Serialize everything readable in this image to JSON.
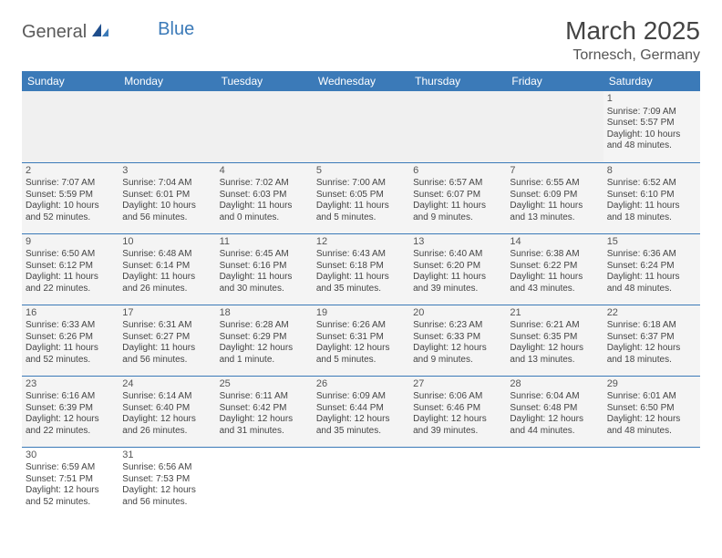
{
  "logo": {
    "part1": "General",
    "part2": "Blue"
  },
  "title": "March 2025",
  "location": "Tornesch, Germany",
  "day_headers": [
    "Sunday",
    "Monday",
    "Tuesday",
    "Wednesday",
    "Thursday",
    "Friday",
    "Saturday"
  ],
  "colors": {
    "header_bg": "#3b7ab8",
    "header_text": "#ffffff",
    "cell_bg": "#f4f4f4",
    "empty_bg": "#f0f0f0",
    "border": "#3b7ab8"
  },
  "weeks": [
    [
      null,
      null,
      null,
      null,
      null,
      null,
      {
        "n": "1",
        "sr": "Sunrise: 7:09 AM",
        "ss": "Sunset: 5:57 PM",
        "d1": "Daylight: 10 hours",
        "d2": "and 48 minutes."
      }
    ],
    [
      {
        "n": "2",
        "sr": "Sunrise: 7:07 AM",
        "ss": "Sunset: 5:59 PM",
        "d1": "Daylight: 10 hours",
        "d2": "and 52 minutes."
      },
      {
        "n": "3",
        "sr": "Sunrise: 7:04 AM",
        "ss": "Sunset: 6:01 PM",
        "d1": "Daylight: 10 hours",
        "d2": "and 56 minutes."
      },
      {
        "n": "4",
        "sr": "Sunrise: 7:02 AM",
        "ss": "Sunset: 6:03 PM",
        "d1": "Daylight: 11 hours",
        "d2": "and 0 minutes."
      },
      {
        "n": "5",
        "sr": "Sunrise: 7:00 AM",
        "ss": "Sunset: 6:05 PM",
        "d1": "Daylight: 11 hours",
        "d2": "and 5 minutes."
      },
      {
        "n": "6",
        "sr": "Sunrise: 6:57 AM",
        "ss": "Sunset: 6:07 PM",
        "d1": "Daylight: 11 hours",
        "d2": "and 9 minutes."
      },
      {
        "n": "7",
        "sr": "Sunrise: 6:55 AM",
        "ss": "Sunset: 6:09 PM",
        "d1": "Daylight: 11 hours",
        "d2": "and 13 minutes."
      },
      {
        "n": "8",
        "sr": "Sunrise: 6:52 AM",
        "ss": "Sunset: 6:10 PM",
        "d1": "Daylight: 11 hours",
        "d2": "and 18 minutes."
      }
    ],
    [
      {
        "n": "9",
        "sr": "Sunrise: 6:50 AM",
        "ss": "Sunset: 6:12 PM",
        "d1": "Daylight: 11 hours",
        "d2": "and 22 minutes."
      },
      {
        "n": "10",
        "sr": "Sunrise: 6:48 AM",
        "ss": "Sunset: 6:14 PM",
        "d1": "Daylight: 11 hours",
        "d2": "and 26 minutes."
      },
      {
        "n": "11",
        "sr": "Sunrise: 6:45 AM",
        "ss": "Sunset: 6:16 PM",
        "d1": "Daylight: 11 hours",
        "d2": "and 30 minutes."
      },
      {
        "n": "12",
        "sr": "Sunrise: 6:43 AM",
        "ss": "Sunset: 6:18 PM",
        "d1": "Daylight: 11 hours",
        "d2": "and 35 minutes."
      },
      {
        "n": "13",
        "sr": "Sunrise: 6:40 AM",
        "ss": "Sunset: 6:20 PM",
        "d1": "Daylight: 11 hours",
        "d2": "and 39 minutes."
      },
      {
        "n": "14",
        "sr": "Sunrise: 6:38 AM",
        "ss": "Sunset: 6:22 PM",
        "d1": "Daylight: 11 hours",
        "d2": "and 43 minutes."
      },
      {
        "n": "15",
        "sr": "Sunrise: 6:36 AM",
        "ss": "Sunset: 6:24 PM",
        "d1": "Daylight: 11 hours",
        "d2": "and 48 minutes."
      }
    ],
    [
      {
        "n": "16",
        "sr": "Sunrise: 6:33 AM",
        "ss": "Sunset: 6:26 PM",
        "d1": "Daylight: 11 hours",
        "d2": "and 52 minutes."
      },
      {
        "n": "17",
        "sr": "Sunrise: 6:31 AM",
        "ss": "Sunset: 6:27 PM",
        "d1": "Daylight: 11 hours",
        "d2": "and 56 minutes."
      },
      {
        "n": "18",
        "sr": "Sunrise: 6:28 AM",
        "ss": "Sunset: 6:29 PM",
        "d1": "Daylight: 12 hours",
        "d2": "and 1 minute."
      },
      {
        "n": "19",
        "sr": "Sunrise: 6:26 AM",
        "ss": "Sunset: 6:31 PM",
        "d1": "Daylight: 12 hours",
        "d2": "and 5 minutes."
      },
      {
        "n": "20",
        "sr": "Sunrise: 6:23 AM",
        "ss": "Sunset: 6:33 PM",
        "d1": "Daylight: 12 hours",
        "d2": "and 9 minutes."
      },
      {
        "n": "21",
        "sr": "Sunrise: 6:21 AM",
        "ss": "Sunset: 6:35 PM",
        "d1": "Daylight: 12 hours",
        "d2": "and 13 minutes."
      },
      {
        "n": "22",
        "sr": "Sunrise: 6:18 AM",
        "ss": "Sunset: 6:37 PM",
        "d1": "Daylight: 12 hours",
        "d2": "and 18 minutes."
      }
    ],
    [
      {
        "n": "23",
        "sr": "Sunrise: 6:16 AM",
        "ss": "Sunset: 6:39 PM",
        "d1": "Daylight: 12 hours",
        "d2": "and 22 minutes."
      },
      {
        "n": "24",
        "sr": "Sunrise: 6:14 AM",
        "ss": "Sunset: 6:40 PM",
        "d1": "Daylight: 12 hours",
        "d2": "and 26 minutes."
      },
      {
        "n": "25",
        "sr": "Sunrise: 6:11 AM",
        "ss": "Sunset: 6:42 PM",
        "d1": "Daylight: 12 hours",
        "d2": "and 31 minutes."
      },
      {
        "n": "26",
        "sr": "Sunrise: 6:09 AM",
        "ss": "Sunset: 6:44 PM",
        "d1": "Daylight: 12 hours",
        "d2": "and 35 minutes."
      },
      {
        "n": "27",
        "sr": "Sunrise: 6:06 AM",
        "ss": "Sunset: 6:46 PM",
        "d1": "Daylight: 12 hours",
        "d2": "and 39 minutes."
      },
      {
        "n": "28",
        "sr": "Sunrise: 6:04 AM",
        "ss": "Sunset: 6:48 PM",
        "d1": "Daylight: 12 hours",
        "d2": "and 44 minutes."
      },
      {
        "n": "29",
        "sr": "Sunrise: 6:01 AM",
        "ss": "Sunset: 6:50 PM",
        "d1": "Daylight: 12 hours",
        "d2": "and 48 minutes."
      }
    ],
    [
      {
        "n": "30",
        "sr": "Sunrise: 6:59 AM",
        "ss": "Sunset: 7:51 PM",
        "d1": "Daylight: 12 hours",
        "d2": "and 52 minutes."
      },
      {
        "n": "31",
        "sr": "Sunrise: 6:56 AM",
        "ss": "Sunset: 7:53 PM",
        "d1": "Daylight: 12 hours",
        "d2": "and 56 minutes."
      },
      null,
      null,
      null,
      null,
      null
    ]
  ]
}
